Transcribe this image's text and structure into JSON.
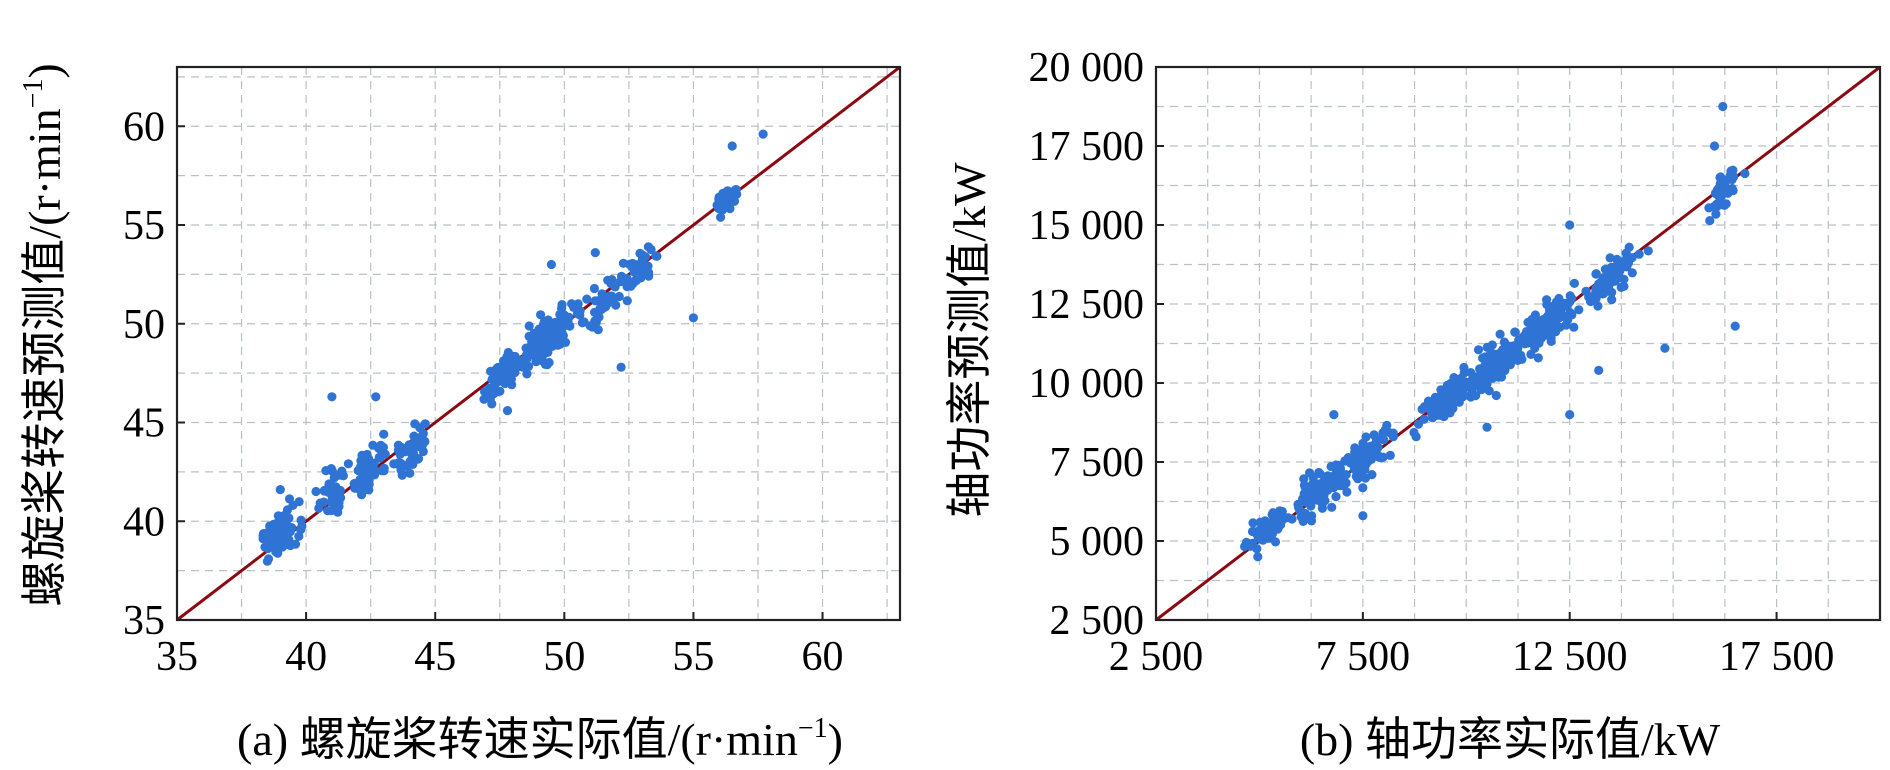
{
  "chart_data": [
    {
      "type": "scatter",
      "id": "a",
      "caption_prefix": "(a) ",
      "caption_text": "螺旋桨转速实际值/(r·min",
      "caption_sup": "−1",
      "caption_suffix": ")",
      "ylabel_text": "螺旋桨转速预测值/(r·min",
      "ylabel_sup": "−1",
      "ylabel_suffix": ")",
      "xlim": [
        35,
        63
      ],
      "ylim": [
        35,
        63
      ],
      "ticks": [
        35,
        40,
        45,
        50,
        55,
        60
      ],
      "tick_labels": [
        "35",
        "40",
        "45",
        "50",
        "55",
        "60"
      ],
      "minor_grid": [
        37.5,
        42.5,
        47.5,
        52.5,
        57.5,
        62.5
      ],
      "reference_line": "y = x",
      "series": [
        {
          "name": "points",
          "cluster_summary": [
            {
              "x": 39,
              "y": 39.3,
              "sx": 0.6,
              "sy": 0.9,
              "n": 90
            },
            {
              "x": 41,
              "y": 41.5,
              "sx": 0.4,
              "sy": 1.2,
              "n": 35
            },
            {
              "x": 42.5,
              "y": 42.8,
              "sx": 0.6,
              "sy": 1.0,
              "n": 60
            },
            {
              "x": 44,
              "y": 43.6,
              "sx": 0.5,
              "sy": 1.1,
              "n": 45
            },
            {
              "x": 47.5,
              "y": 47.3,
              "sx": 0.5,
              "sy": 0.8,
              "n": 45
            },
            {
              "x": 49.3,
              "y": 49.2,
              "sx": 0.9,
              "sy": 0.9,
              "n": 170
            },
            {
              "x": 51.5,
              "y": 51.0,
              "sx": 0.6,
              "sy": 0.9,
              "n": 40
            },
            {
              "x": 52.8,
              "y": 52.6,
              "sx": 0.5,
              "sy": 0.8,
              "n": 35
            },
            {
              "x": 56.3,
              "y": 56.3,
              "sx": 0.35,
              "sy": 0.4,
              "n": 50
            }
          ],
          "outliers": [
            [
              57.7,
              59.6
            ],
            [
              55,
              50.3
            ],
            [
              56.5,
              59.0
            ],
            [
              52.2,
              47.8
            ],
            [
              49.5,
              53.0
            ],
            [
              51.2,
              53.6
            ],
            [
              42.7,
              46.3
            ],
            [
              41.0,
              46.3
            ],
            [
              39,
              41.6
            ],
            [
              47.8,
              45.6
            ]
          ]
        }
      ]
    },
    {
      "type": "scatter",
      "id": "b",
      "caption_prefix": "(b) ",
      "caption_text": "轴功率实际值/kW",
      "ylabel_text": "轴功率预测值/kW",
      "xlim": [
        2500,
        20000
      ],
      "ylim": [
        2500,
        20000
      ],
      "xticks": [
        2500,
        7500,
        12500,
        17500
      ],
      "xtick_labels": [
        "2 500",
        "7 500",
        "12 500",
        "17 500"
      ],
      "yticks": [
        2500,
        5000,
        7500,
        10000,
        12500,
        15000,
        17500,
        20000
      ],
      "ytick_labels": [
        "2 500",
        "5 000",
        "7 500",
        "10 000",
        "12 500",
        "15 000",
        "17 500",
        "20 000"
      ],
      "grid": [
        3750,
        5000,
        6250,
        7500,
        8750,
        10000,
        11250,
        12500,
        13750,
        15000,
        16250,
        17500,
        18750
      ],
      "reference_line": "y = x",
      "series": [
        {
          "name": "points",
          "cluster_summary": [
            {
              "x": 5200,
              "y": 5300,
              "sx": 400,
              "sy": 400,
              "n": 70
            },
            {
              "x": 6400,
              "y": 6500,
              "sx": 550,
              "sy": 550,
              "n": 90
            },
            {
              "x": 7600,
              "y": 7700,
              "sx": 500,
              "sy": 500,
              "n": 80
            },
            {
              "x": 9500,
              "y": 9500,
              "sx": 500,
              "sy": 500,
              "n": 80
            },
            {
              "x": 10700,
              "y": 10600,
              "sx": 600,
              "sy": 550,
              "n": 140
            },
            {
              "x": 12000,
              "y": 11900,
              "sx": 550,
              "sy": 550,
              "n": 100
            },
            {
              "x": 13500,
              "y": 13300,
              "sx": 550,
              "sy": 500,
              "n": 70
            },
            {
              "x": 16200,
              "y": 16000,
              "sx": 250,
              "sy": 500,
              "n": 45
            }
          ],
          "outliers": [
            [
              16200,
              18750
            ],
            [
              16500,
              11800
            ],
            [
              14800,
              11100
            ],
            [
              13200,
              10400
            ],
            [
              12500,
              9000
            ],
            [
              6800,
              9000
            ],
            [
              10500,
              8600
            ],
            [
              12500,
              15000
            ],
            [
              7500,
              5800
            ],
            [
              16000,
              17500
            ]
          ]
        }
      ]
    }
  ]
}
